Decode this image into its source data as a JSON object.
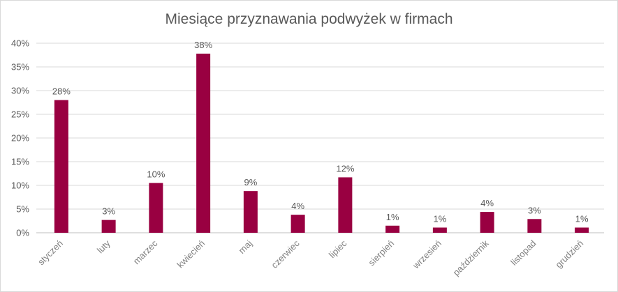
{
  "chart_data": {
    "type": "bar",
    "title": "Miesiące przyznawania podwyżek w firmach",
    "xlabel": "",
    "ylabel": "",
    "ylim": [
      0,
      40
    ],
    "yticks": [
      "0%",
      "5%",
      "10%",
      "15%",
      "20%",
      "25%",
      "30%",
      "35%",
      "40%"
    ],
    "grid": true,
    "legend": "none",
    "bar_color": "#990041",
    "categories": [
      "styczeń",
      "luty",
      "marzec",
      "kwiecień",
      "maj",
      "czerwiec",
      "lipiec",
      "sierpień",
      "wrzesień",
      "październik",
      "listopad",
      "grudzień"
    ],
    "values": [
      28,
      2.7,
      10.5,
      37.8,
      8.8,
      3.8,
      11.7,
      1.5,
      1.1,
      4.4,
      2.9,
      1.1
    ],
    "data_labels": [
      "28%",
      "3%",
      "10%",
      "38%",
      "9%",
      "4%",
      "12%",
      "1%",
      "1%",
      "4%",
      "3%",
      "1%"
    ]
  }
}
